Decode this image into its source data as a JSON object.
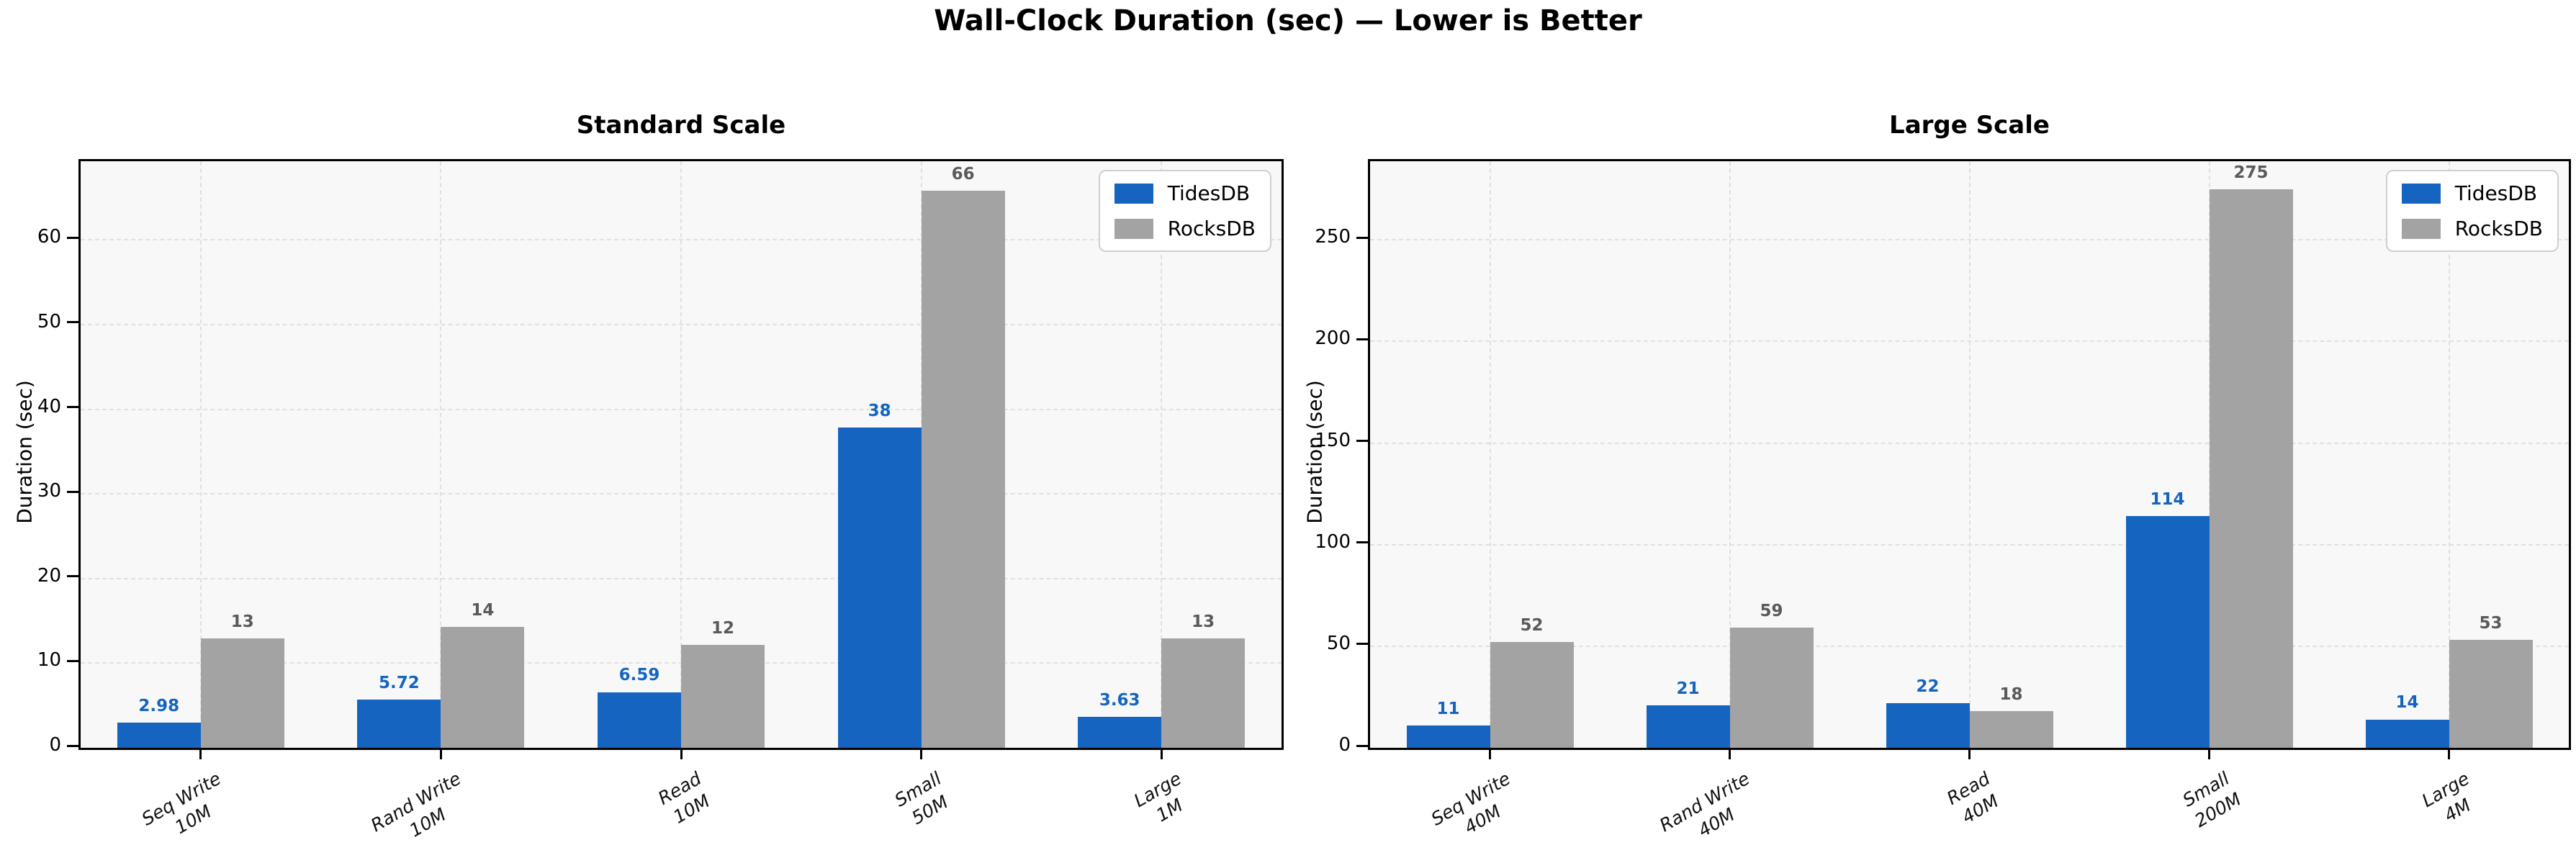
{
  "figure_title": "Wall-Clock Duration (sec) — Lower is Better",
  "legend_labels": [
    "TidesDB",
    "RocksDB"
  ],
  "colors": {
    "tidesdb": "#1565c0",
    "rocksdb": "#a3a3a3",
    "tidesdb_value_label": "#1565c0",
    "rocksdb_value_label": "#5a5a5a",
    "grid": "#e0e0e0",
    "panel_background": "#f8f8f8",
    "spine": "#000000"
  },
  "chart_data": [
    {
      "type": "bar",
      "title": "Standard Scale",
      "ylabel": "Duration (sec)",
      "xlabel": "",
      "grid": true,
      "legend_position": "upper right",
      "categories": [
        "Seq Write\n10M",
        "Rand Write\n10M",
        "Read\n10M",
        "Small\n50M",
        "Large\n1M"
      ],
      "yticks": [
        0,
        10,
        20,
        30,
        40,
        50,
        60
      ],
      "ylim": [
        0,
        69.3
      ],
      "series": [
        {
          "name": "TidesDB",
          "color": "#1565c0",
          "label_color": "#1565c0",
          "values": [
            2.98,
            5.72,
            6.59,
            37.8,
            3.63
          ],
          "labels": [
            "2.98",
            "5.72",
            "6.59",
            "38",
            "3.63"
          ]
        },
        {
          "name": "RocksDB",
          "color": "#a3a3a3",
          "label_color": "#5a5a5a",
          "values": [
            12.9,
            14.3,
            12.2,
            65.8,
            12.9
          ],
          "labels": [
            "13",
            "14",
            "12",
            "66",
            "13"
          ]
        }
      ]
    },
    {
      "type": "bar",
      "title": "Large Scale",
      "ylabel": "Duration (sec)",
      "xlabel": "",
      "grid": true,
      "legend_position": "upper right",
      "categories": [
        "Seq Write\n40M",
        "Rand Write\n40M",
        "Read\n40M",
        "Small\n200M",
        "Large\n4M"
      ],
      "yticks": [
        0,
        50,
        100,
        150,
        200,
        250
      ],
      "ylim": [
        0,
        288.75
      ],
      "series": [
        {
          "name": "TidesDB",
          "color": "#1565c0",
          "label_color": "#1565c0",
          "values": [
            11,
            21,
            22,
            114,
            14
          ],
          "labels": [
            "11",
            "21",
            "22",
            "114",
            "14"
          ]
        },
        {
          "name": "RocksDB",
          "color": "#a3a3a3",
          "label_color": "#5a5a5a",
          "values": [
            52,
            59,
            18,
            275,
            53
          ],
          "labels": [
            "52",
            "59",
            "18",
            "275",
            "53"
          ]
        }
      ]
    }
  ]
}
